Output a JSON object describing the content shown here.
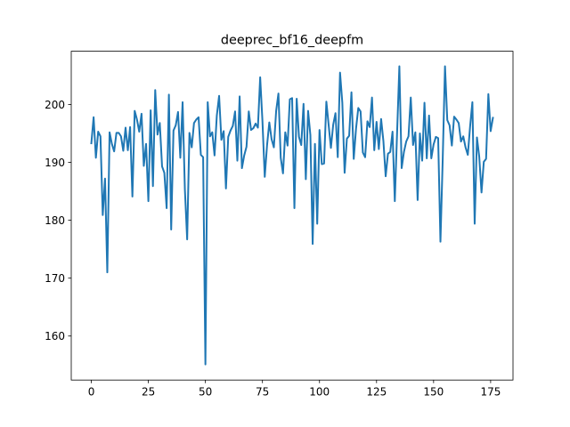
{
  "chart_data": {
    "type": "line",
    "title": "deeprec_bf16_deepfm",
    "xlabel": "",
    "ylabel": "",
    "xlim": [
      -8.8,
      184.8
    ],
    "ylim": [
      152.4,
      209.2
    ],
    "x_ticks": [
      0,
      25,
      50,
      75,
      100,
      125,
      150,
      175
    ],
    "y_ticks": [
      160,
      170,
      180,
      190,
      200
    ],
    "grid": false,
    "line_color": "#1f77b4",
    "series": [
      {
        "x": [
          0,
          1,
          2,
          3,
          4,
          5,
          6,
          7,
          8,
          9,
          10,
          11,
          12,
          13,
          14,
          15,
          16,
          17,
          18,
          19,
          20,
          21,
          22,
          23,
          24,
          25,
          26,
          27,
          28,
          29,
          30,
          31,
          32,
          33,
          34,
          35,
          36,
          37,
          38,
          39,
          40,
          41,
          42,
          43,
          44,
          45,
          46,
          47,
          48,
          49,
          50,
          51,
          52,
          53,
          54,
          55,
          56,
          57,
          58,
          59,
          60,
          61,
          62,
          63,
          64,
          65,
          66,
          67,
          68,
          69,
          70,
          71,
          72,
          73,
          74,
          75,
          76,
          77,
          78,
          79,
          80,
          81,
          82,
          83,
          84,
          85,
          86,
          87,
          88,
          89,
          90,
          91,
          92,
          93,
          94,
          95,
          96,
          97,
          98,
          99,
          100,
          101,
          102,
          103,
          104,
          105,
          106,
          107,
          108,
          109,
          110,
          111,
          112,
          113,
          114,
          115,
          116,
          117,
          118,
          119,
          120,
          121,
          122,
          123,
          124,
          125,
          126,
          127,
          128,
          129,
          130,
          131,
          132,
          133,
          134,
          135,
          136,
          137,
          138,
          139,
          140,
          141,
          142,
          143,
          144,
          145,
          146,
          147,
          148,
          149,
          150,
          151,
          152,
          153,
          154,
          155,
          156,
          157,
          158,
          159,
          160,
          161,
          162,
          163,
          164,
          165,
          166,
          167,
          168,
          169,
          170,
          171,
          172,
          173,
          174,
          175,
          176
        ],
        "values": [
          193.3,
          197.8,
          190.8,
          195.3,
          194.5,
          180.9,
          187.2,
          171.0,
          195.2,
          193.2,
          191.9,
          195.1,
          195.1,
          194.5,
          192.0,
          196.0,
          192.1,
          196.1,
          184.1,
          198.9,
          197.4,
          195.3,
          198.4,
          189.4,
          193.2,
          183.3,
          199.0,
          185.9,
          202.5,
          194.8,
          196.8,
          189.3,
          188.2,
          182.1,
          201.7,
          178.4,
          195.5,
          196.4,
          198.7,
          190.8,
          200.4,
          185.3,
          176.7,
          195.1,
          192.6,
          196.8,
          197.4,
          197.8,
          191.3,
          190.9,
          155.1,
          200.4,
          194.5,
          195.2,
          191.2,
          198.1,
          201.5,
          193.9,
          195.4,
          185.5,
          194.4,
          195.5,
          196.3,
          198.8,
          190.3,
          201.4,
          189.0,
          191.2,
          192.7,
          198.8,
          195.6,
          195.9,
          196.7,
          196.0,
          204.7,
          197.1,
          187.5,
          192.9,
          196.9,
          194.0,
          192.6,
          198.9,
          201.9,
          190.8,
          188.1,
          195.2,
          192.9,
          200.9,
          201.1,
          182.1,
          201.0,
          194.4,
          193.0,
          200.1,
          187.1,
          198.9,
          194.7,
          175.9,
          193.2,
          179.4,
          195.6,
          189.7,
          189.8,
          200.5,
          196.5,
          192.5,
          196.5,
          198.5,
          190.9,
          205.5,
          200.3,
          188.2,
          194.1,
          194.6,
          202.1,
          190.6,
          195.8,
          199.4,
          198.8,
          191.7,
          190.9,
          197.1,
          196.1,
          201.2,
          192.1,
          197.0,
          192.3,
          197.5,
          193.7,
          187.6,
          191.5,
          191.8,
          195.3,
          183.3,
          195.1,
          206.6,
          189.0,
          191.8,
          193.6,
          194.5,
          201.2,
          193.0,
          195.2,
          183.5,
          195.0,
          190.3,
          200.3,
          190.7,
          198.1,
          190.7,
          193.1,
          194.4,
          194.2,
          176.3,
          190.6,
          206.6,
          197.3,
          196.4,
          192.9,
          197.9,
          197.4,
          196.8,
          193.6,
          194.5,
          192.6,
          191.3,
          196.2,
          200.4,
          179.4,
          194.3,
          191.0,
          184.8,
          190.1,
          190.6,
          201.8,
          195.4,
          197.7
        ]
      }
    ]
  }
}
